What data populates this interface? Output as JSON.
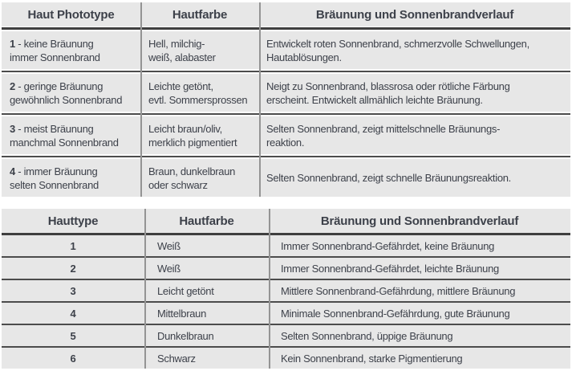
{
  "colors": {
    "cell_background": "#e7e7e7",
    "text": "#3d414a",
    "horizontal_rule": "#4c4c4c",
    "column_divider": "#949494",
    "page_background": "#ffffff"
  },
  "table1": {
    "headers": {
      "col1": "Haut Phototype",
      "col2": "Hautfarbe",
      "col3": "Bräunung und Sonnenbrandverlauf"
    },
    "rows": [
      {
        "num": "1",
        "type_rest": "- keine Bräunung",
        "type_line2": "immer Sonnenbrand",
        "color_line1": "Hell, milchig-",
        "color_line2": "weiß, alabaster",
        "desc_line1": "Entwickelt roten Sonnenbrand, schmerzvolle Schwellungen,",
        "desc_line2": "Hautablösungen."
      },
      {
        "num": "2",
        "type_rest": "- geringe Bräunung",
        "type_line2": "gewöhnlich Sonnenbrand",
        "color_line1": "Leichte getönt,",
        "color_line2": "evtl. Sommersprossen",
        "desc_line1": "Neigt zu Sonnenbrand, blassrosa oder rötliche Färbung",
        "desc_line2": "erscheint. Entwickelt allmählich leichte Bräunung."
      },
      {
        "num": "3",
        "type_rest": "- meist Bräunung",
        "type_line2": "manchmal Sonnenbrand",
        "color_line1": "Leicht braun/oliv,",
        "color_line2": "merklich pigmentiert",
        "desc_line1": "Selten Sonnenbrand, zeigt mittelschnelle Bräunungs-",
        "desc_line2": "reaktion."
      },
      {
        "num": "4",
        "type_rest": "- immer Bräunung",
        "type_line2": "selten Sonnenbrand",
        "color_line1": "Braun, dunkelbraun",
        "color_line2": "oder schwarz",
        "desc_line1": "Selten Sonnenbrand, zeigt schnelle Bräunungsreaktion.",
        "desc_line2": ""
      }
    ]
  },
  "table2": {
    "headers": {
      "col1": "Hauttype",
      "col2": "Hautfarbe",
      "col3": "Bräunung und Sonnenbrandverlauf"
    },
    "rows": [
      {
        "num": "1",
        "color": "Weiß",
        "desc": "Immer Sonnenbrand-Gefährdet, keine Bräunung"
      },
      {
        "num": "2",
        "color": "Weiß",
        "desc": "Immer Sonnenbrand-Gefährdet, leichte Bräunung"
      },
      {
        "num": "3",
        "color": "Leicht getönt",
        "desc": "Mittlere Sonnenbrand-Gefährdung, mittlere Bräunung"
      },
      {
        "num": "4",
        "color": "Mittelbraun",
        "desc": "Minimale Sonnenbrand-Gefährdung, gute Bräunung"
      },
      {
        "num": "5",
        "color": "Dunkelbraun",
        "desc": "Selten Sonnenbrand, üppige Bräunung"
      },
      {
        "num": "6",
        "color": "Schwarz",
        "desc": "Kein Sonnenbrand, starke Pigmentierung"
      }
    ]
  }
}
